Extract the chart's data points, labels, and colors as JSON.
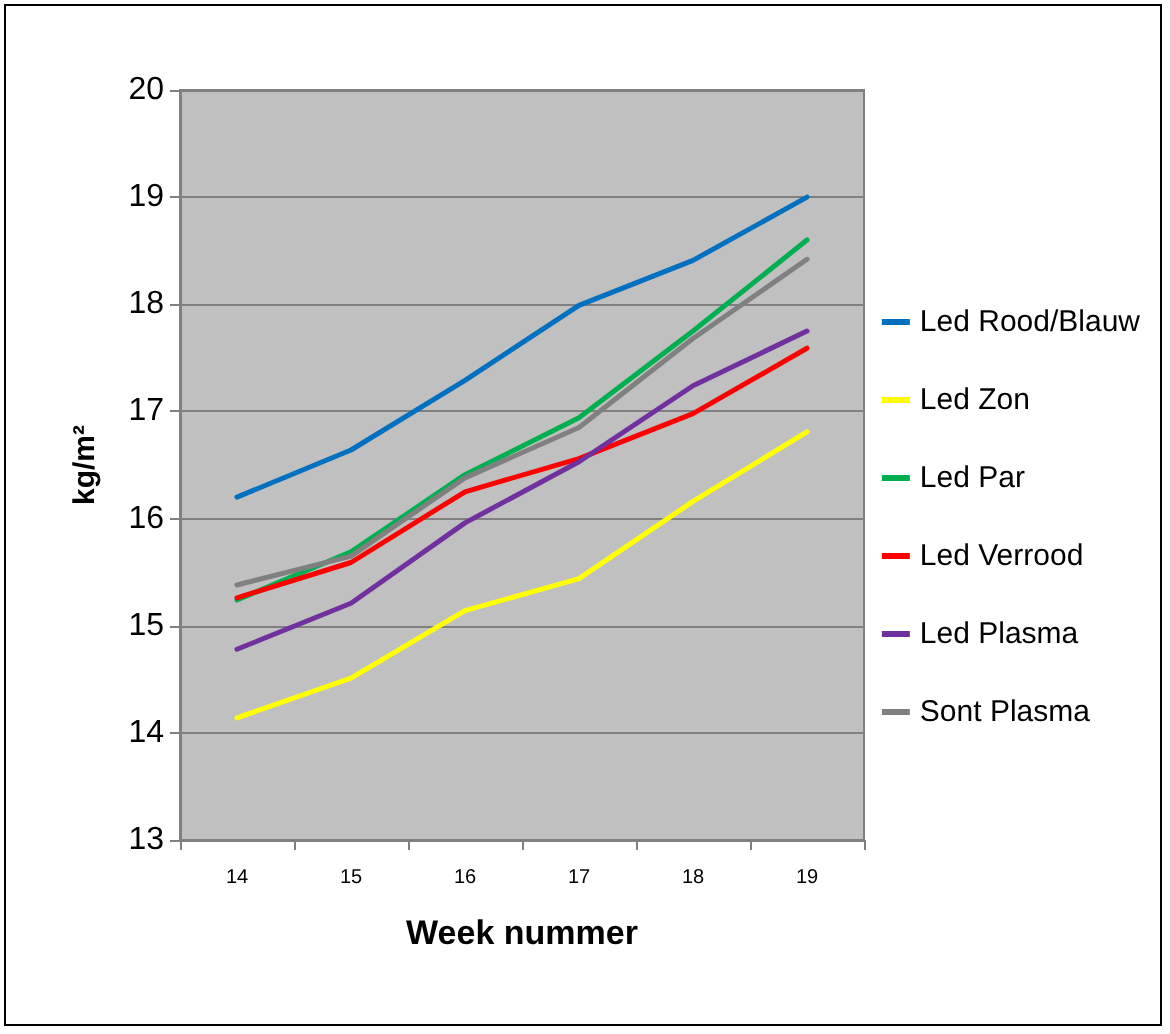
{
  "chart_data": {
    "type": "line",
    "xlabel": "Week nummer",
    "ylabel": "kg/m²",
    "categories": [
      "14",
      "15",
      "16",
      "17",
      "18",
      "19"
    ],
    "series": [
      {
        "name": "Led Rood/Blauw",
        "color": "#0070c0",
        "values": [
          16.2,
          16.64,
          17.29,
          17.99,
          18.41,
          19.0
        ]
      },
      {
        "name": "Led Zon",
        "color": "#ffff00",
        "values": [
          14.14,
          14.51,
          15.14,
          15.44,
          16.16,
          16.81
        ]
      },
      {
        "name": "Led Par",
        "color": "#00b050",
        "values": [
          15.24,
          15.69,
          16.41,
          16.94,
          17.75,
          18.6
        ]
      },
      {
        "name": "Led Verrood",
        "color": "#ff0000",
        "values": [
          15.26,
          15.59,
          16.25,
          16.56,
          16.98,
          17.59
        ]
      },
      {
        "name": "Led Plasma",
        "color": "#7030a0",
        "values": [
          14.78,
          15.21,
          15.96,
          16.53,
          17.24,
          17.75
        ]
      },
      {
        "name": "Sont Plasma",
        "color": "#808080",
        "values": [
          15.38,
          15.65,
          16.38,
          16.85,
          17.68,
          18.42
        ]
      }
    ],
    "ylim": [
      13,
      20
    ],
    "yticks": [
      13,
      14,
      15,
      16,
      17,
      18,
      19,
      20
    ],
    "grid": "y",
    "legend": "right",
    "marker": "none",
    "line_style": "solid"
  }
}
